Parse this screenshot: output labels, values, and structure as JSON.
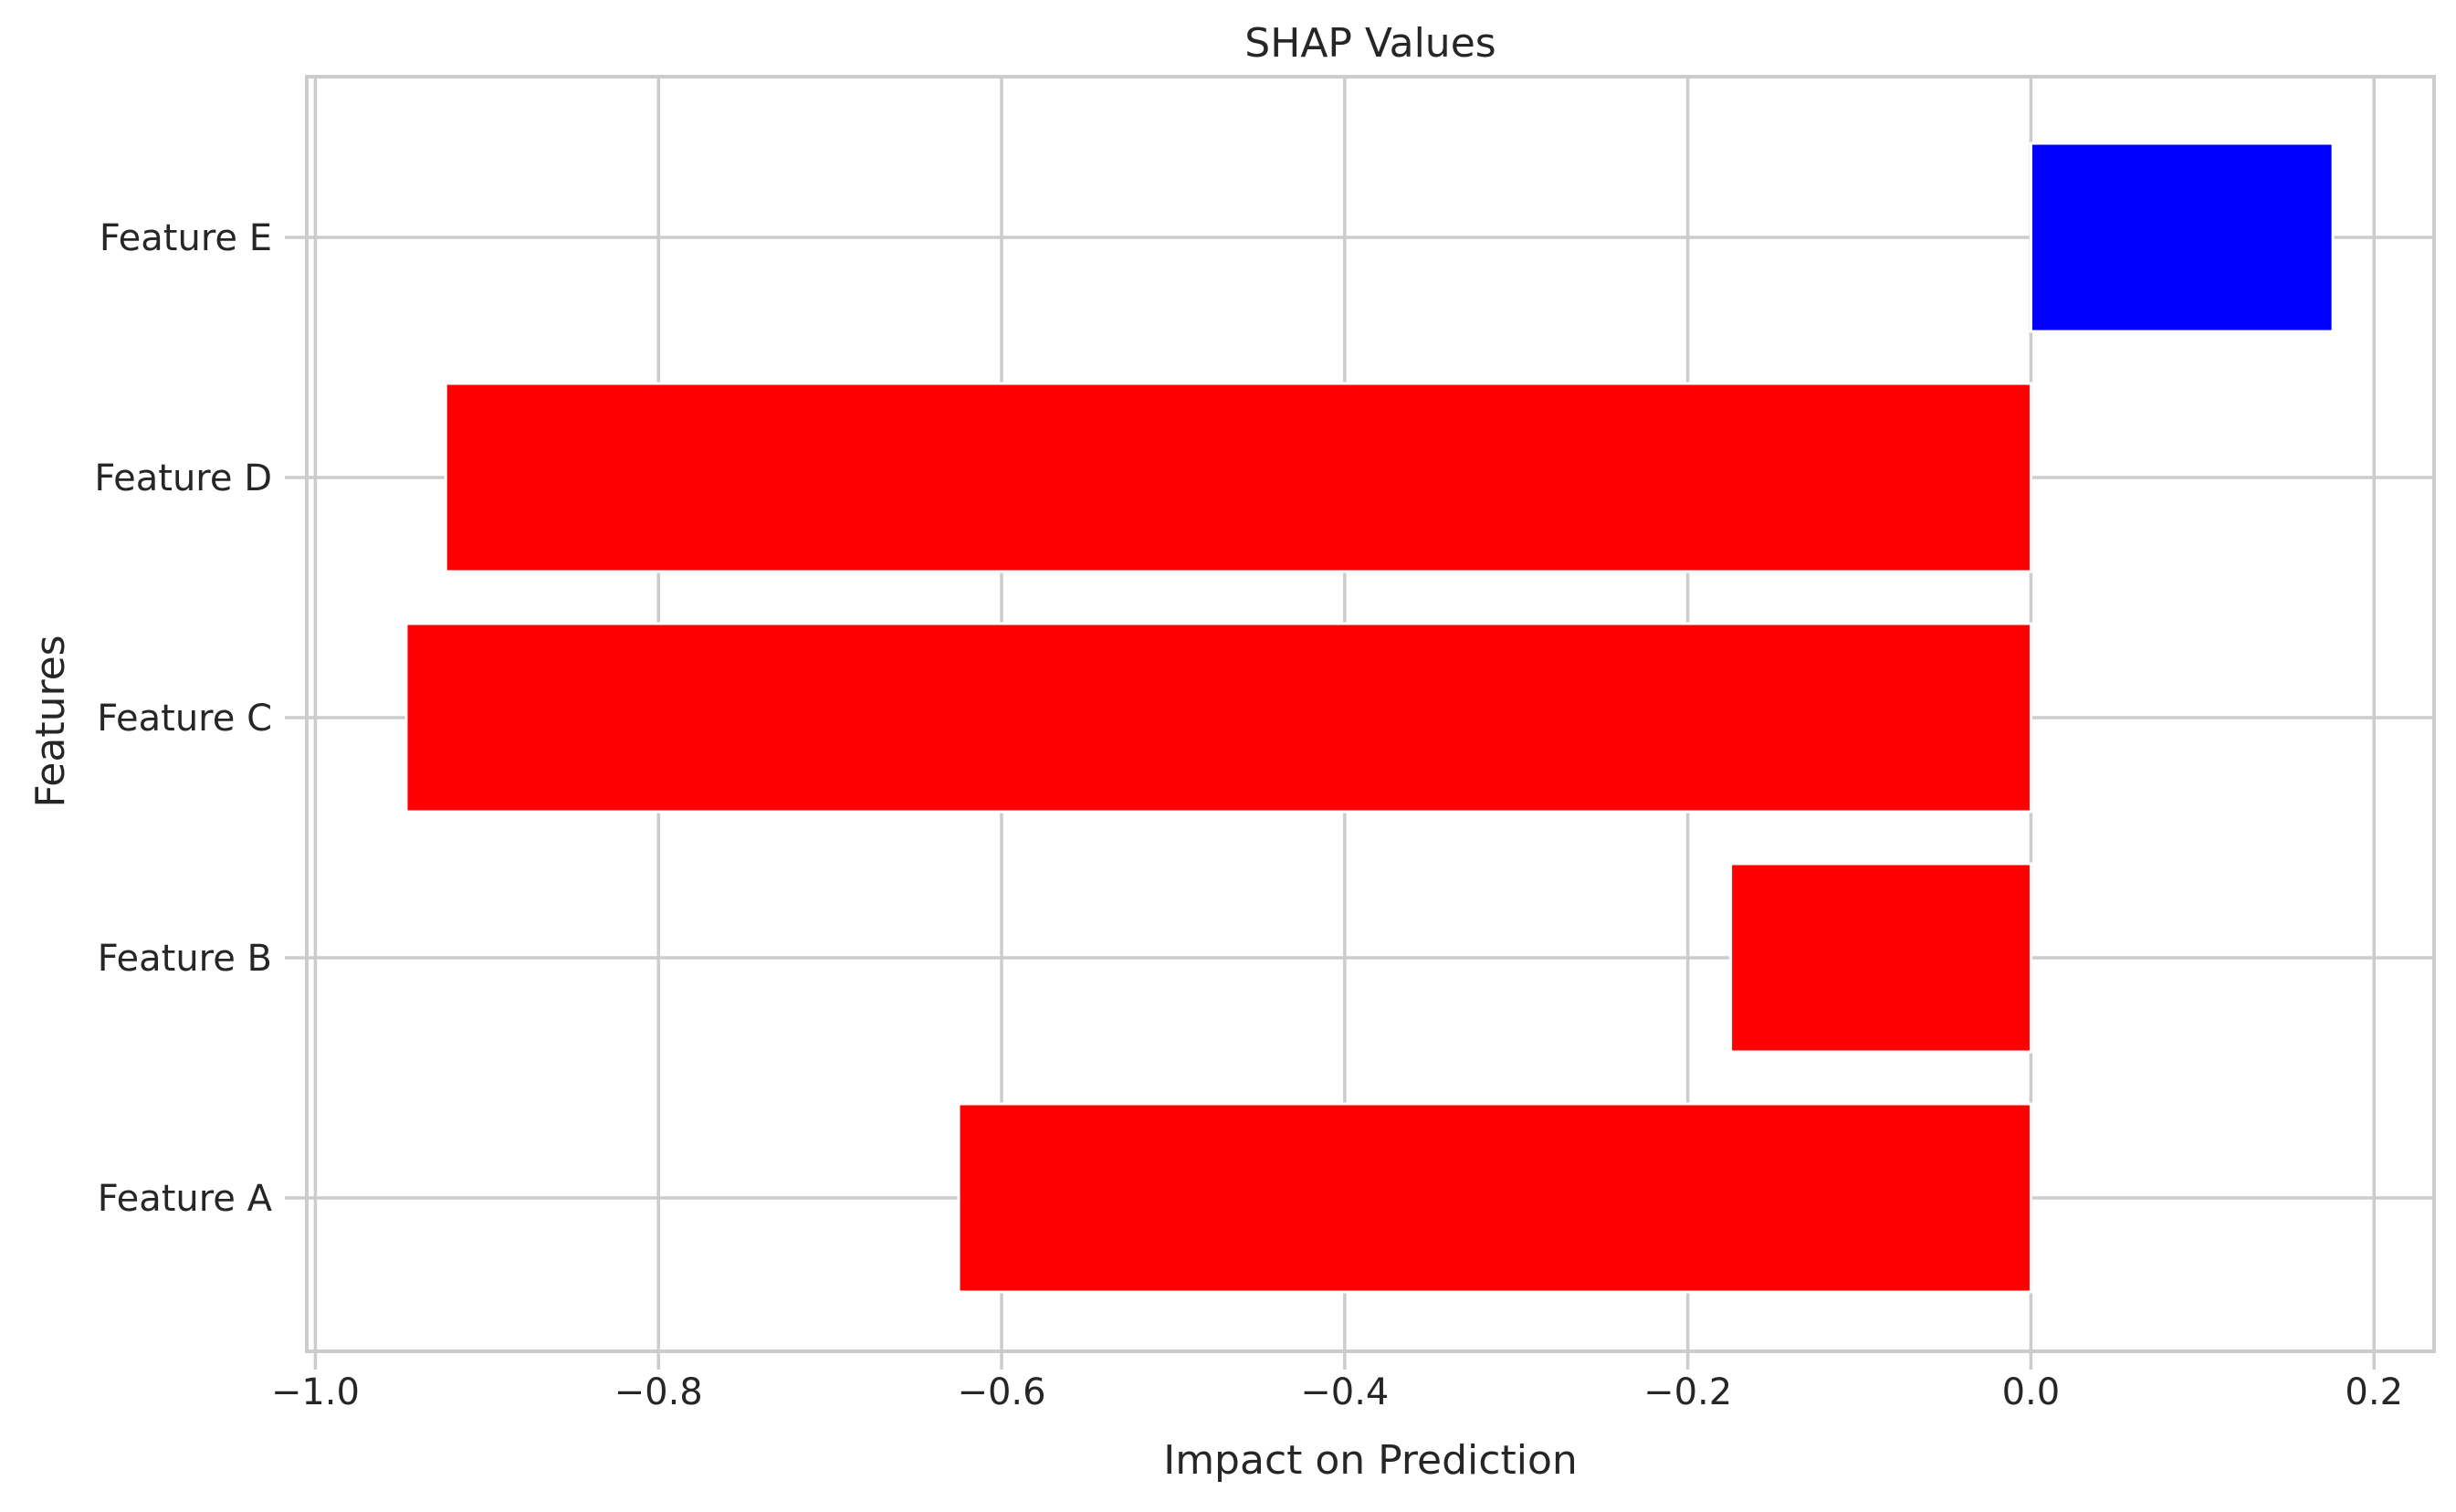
{
  "chart_data": {
    "type": "bar",
    "orientation": "horizontal",
    "title": "SHAP Values",
    "xlabel": "Impact on Prediction",
    "ylabel": "Features",
    "categories": [
      "Feature A",
      "Feature B",
      "Feature C",
      "Feature D",
      "Feature E"
    ],
    "values": [
      -0.625,
      -0.175,
      -0.947,
      -0.924,
      0.176
    ],
    "xlim": [
      -1.005,
      0.235
    ],
    "xticks": [
      -1.0,
      -0.8,
      -0.6,
      -0.4,
      -0.2,
      0.0,
      0.2
    ],
    "xtick_labels": [
      "−1.0",
      "−0.8",
      "−0.6",
      "−0.4",
      "−0.2",
      "0.0",
      "0.2"
    ],
    "grid": true,
    "colors": {
      "negative": "#ff0000",
      "positive": "#0000ff"
    }
  }
}
